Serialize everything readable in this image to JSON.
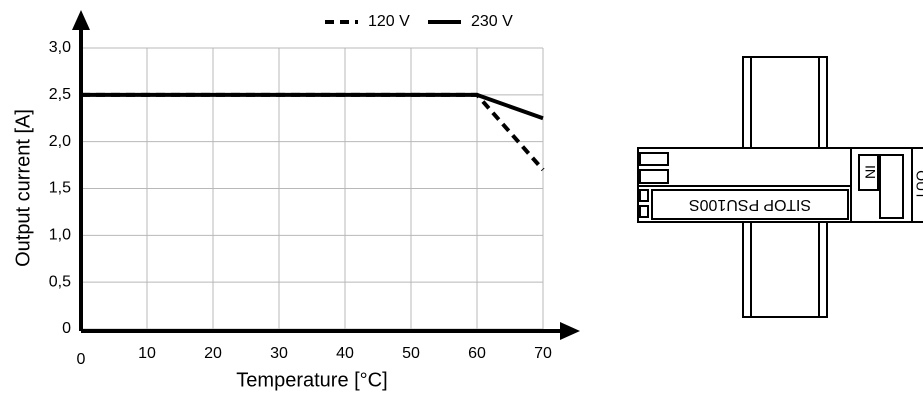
{
  "chart_data": {
    "type": "line",
    "x_label": "Temperature [°C]",
    "y_label": "Output current [A]",
    "x": [
      0,
      60,
      70
    ],
    "series": [
      {
        "name": "120 V",
        "color": "#000000",
        "line_style": "dashed",
        "values": [
          2.5,
          2.5,
          1.7
        ]
      },
      {
        "name": "230 V",
        "color": "#000000",
        "line_style": "solid",
        "values": [
          2.5,
          2.5,
          2.25
        ]
      }
    ],
    "xlim": [
      0,
      70
    ],
    "xticks": [
      0,
      10,
      20,
      30,
      40,
      50,
      60,
      70
    ],
    "ylim": [
      0,
      3
    ],
    "yticks": [
      0,
      {
        "value": 0.5,
        "label": "0,5"
      },
      {
        "value": 1,
        "label": "1,0"
      },
      {
        "value": 1.5,
        "label": "1,5"
      },
      {
        "value": 2,
        "label": "2,0"
      },
      {
        "value": 2.5,
        "label": "2,5"
      },
      {
        "value": 3,
        "label": "3,0"
      }
    ],
    "grid": true,
    "legend": "top"
  },
  "diagram": {
    "device_label": "SITOP PSU100S",
    "input_label": "IN",
    "output_label": "OUT"
  }
}
